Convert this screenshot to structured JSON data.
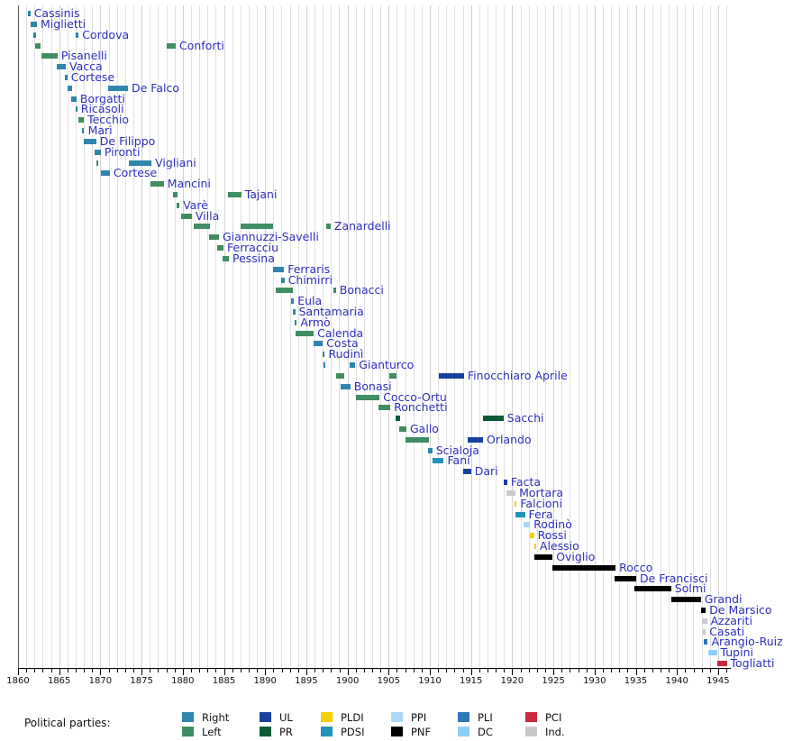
{
  "chart_data": {
    "type": "timeline",
    "description": "Gantt-style timeline of Italian ministers of justice 1861-1946, colored by political party",
    "legend_title": "Political parties:",
    "axis": {
      "start_year": 1860,
      "end_year": 1946,
      "minor_tick_interval": 1,
      "major_tick_interval": 5,
      "tick_label_years": [
        1860,
        1865,
        1870,
        1875,
        1880,
        1885,
        1890,
        1895,
        1900,
        1905,
        1910,
        1915,
        1920,
        1925,
        1930,
        1935,
        1940,
        1945
      ]
    },
    "parties": {
      "Right": "#2e86ad",
      "Left": "#3f8e63",
      "UL": "#17419f",
      "PR": "#0a5b38",
      "PLDI": "#f6ce03",
      "PDSI": "#2392bb",
      "PPI": "#a9d8f6",
      "PNF": "#000000",
      "PLI": "#2f76bb",
      "DC": "#8ecef5",
      "PCI": "#c92a3d",
      "Ind.": "#c9c9c9"
    },
    "legend_order": [
      "Right",
      "Left",
      "UL",
      "PR",
      "PLDI",
      "PDSI",
      "PPI",
      "PNF",
      "PLI",
      "DC",
      "PCI",
      "Ind."
    ],
    "ministers": [
      {
        "name": "Cassinis",
        "terms": [
          [
            1861.2,
            1861.5,
            "Right"
          ]
        ]
      },
      {
        "name": "Miglietti",
        "terms": [
          [
            1861.5,
            1862.3,
            "Right"
          ]
        ]
      },
      {
        "name": "Cordova",
        "terms": [
          [
            1861.9,
            1862.15,
            "Right"
          ],
          [
            1867.0,
            1867.35,
            "Right"
          ]
        ]
      },
      {
        "name": "Conforti",
        "terms": [
          [
            1862.05,
            1862.75,
            "Left"
          ],
          [
            1878.05,
            1879.15,
            "Left"
          ]
        ]
      },
      {
        "name": "Pisanelli",
        "terms": [
          [
            1862.85,
            1864.8,
            "Left"
          ]
        ]
      },
      {
        "name": "Vacca",
        "terms": [
          [
            1864.7,
            1865.8,
            "Right"
          ]
        ]
      },
      {
        "name": "Cortese",
        "terms": [
          [
            1865.65,
            1866.0,
            "Right"
          ]
        ]
      },
      {
        "name": "De Falco",
        "terms": [
          [
            1866.0,
            1866.55,
            "Right"
          ],
          [
            1870.95,
            1873.35,
            "Right"
          ]
        ]
      },
      {
        "name": "Borgatti",
        "terms": [
          [
            1866.4,
            1867.1,
            "Right"
          ]
        ]
      },
      {
        "name": "Ricasoli",
        "terms": [
          [
            1867.0,
            1867.2,
            "Right"
          ]
        ]
      },
      {
        "name": "Tecchio",
        "terms": [
          [
            1867.35,
            1868.0,
            "Left"
          ]
        ]
      },
      {
        "name": "Mari",
        "terms": [
          [
            1867.75,
            1868.05,
            "Right"
          ]
        ]
      },
      {
        "name": "De Filippo",
        "terms": [
          [
            1868.0,
            1869.5,
            "Right"
          ]
        ]
      },
      {
        "name": "Pironti",
        "terms": [
          [
            1869.3,
            1870.05,
            "Right"
          ]
        ]
      },
      {
        "name": "Vigliani",
        "terms": [
          [
            1869.5,
            1869.75,
            "Left"
          ],
          [
            1873.45,
            1876.2,
            "Right"
          ]
        ]
      },
      {
        "name": "Cortese",
        "terms": [
          [
            1870.05,
            1871.15,
            "Right"
          ]
        ]
      },
      {
        "name": "Mancini",
        "terms": [
          [
            1876.1,
            1877.7,
            "Left"
          ]
        ]
      },
      {
        "name": "Tajani",
        "terms": [
          [
            1878.8,
            1879.35,
            "Left"
          ],
          [
            1885.5,
            1887.1,
            "Left"
          ]
        ]
      },
      {
        "name": "Varè",
        "terms": [
          [
            1879.25,
            1879.6,
            "Left"
          ]
        ]
      },
      {
        "name": "Villa",
        "terms": [
          [
            1879.8,
            1881.1,
            "Left"
          ]
        ]
      },
      {
        "name": "Zanardelli",
        "terms": [
          [
            1881.3,
            1883.3,
            "Left"
          ],
          [
            1887.0,
            1891.0,
            "Left"
          ],
          [
            1897.45,
            1897.95,
            "Left"
          ]
        ]
      },
      {
        "name": "Giannuzzi-Savelli",
        "terms": [
          [
            1883.2,
            1884.4,
            "Left"
          ]
        ]
      },
      {
        "name": "Ferracciu",
        "terms": [
          [
            1884.2,
            1884.95,
            "Left"
          ]
        ]
      },
      {
        "name": "Pessina",
        "terms": [
          [
            1884.85,
            1885.6,
            "Left"
          ]
        ]
      },
      {
        "name": "Ferraris",
        "terms": [
          [
            1891.0,
            1892.3,
            "Right"
          ]
        ]
      },
      {
        "name": "Chimirri",
        "terms": [
          [
            1891.95,
            1892.35,
            "Right"
          ]
        ]
      },
      {
        "name": "Bonacci",
        "terms": [
          [
            1891.3,
            1893.4,
            "Left"
          ],
          [
            1898.3,
            1898.6,
            "Left"
          ]
        ]
      },
      {
        "name": "Eula",
        "terms": [
          [
            1893.15,
            1893.5,
            "Right"
          ]
        ]
      },
      {
        "name": "Santamaria",
        "terms": [
          [
            1893.4,
            1893.65,
            "Right"
          ]
        ]
      },
      {
        "name": "Armò",
        "terms": [
          [
            1893.6,
            1893.85,
            "Right"
          ]
        ]
      },
      {
        "name": "Calenda",
        "terms": [
          [
            1893.7,
            1895.9,
            "Left"
          ]
        ]
      },
      {
        "name": "Costa",
        "terms": [
          [
            1895.9,
            1897.0,
            "Right"
          ]
        ]
      },
      {
        "name": "Rudinì",
        "terms": [
          [
            1897.0,
            1897.25,
            "Right"
          ]
        ]
      },
      {
        "name": "Gianturco",
        "terms": [
          [
            1897.05,
            1897.35,
            "Right"
          ],
          [
            1900.3,
            1900.95,
            "Right"
          ]
        ]
      },
      {
        "name": "Finocchiaro Aprile",
        "terms": [
          [
            1898.65,
            1899.6,
            "Left"
          ],
          [
            1905.1,
            1906.0,
            "Left"
          ],
          [
            1911.1,
            1914.15,
            "UL"
          ]
        ]
      },
      {
        "name": "Bonasi",
        "terms": [
          [
            1899.2,
            1900.35,
            "Right"
          ]
        ]
      },
      {
        "name": "Cocco-Ortu",
        "terms": [
          [
            1901.0,
            1903.9,
            "Left"
          ]
        ]
      },
      {
        "name": "Ronchetti",
        "terms": [
          [
            1903.8,
            1905.2,
            "Left"
          ]
        ]
      },
      {
        "name": "Sacchi",
        "terms": [
          [
            1905.85,
            1906.4,
            "PR"
          ],
          [
            1916.45,
            1918.95,
            "PR"
          ]
        ]
      },
      {
        "name": "Gallo",
        "terms": [
          [
            1906.3,
            1907.15,
            "Left"
          ]
        ]
      },
      {
        "name": "Orlando",
        "terms": [
          [
            1907.05,
            1909.9,
            "Left"
          ],
          [
            1914.6,
            1916.45,
            "UL"
          ]
        ]
      },
      {
        "name": "Scialoja",
        "terms": [
          [
            1909.8,
            1910.3,
            "Right"
          ]
        ]
      },
      {
        "name": "Fani",
        "terms": [
          [
            1910.3,
            1911.7,
            "PDSI"
          ]
        ]
      },
      {
        "name": "Dari",
        "terms": [
          [
            1914.05,
            1915.0,
            "UL"
          ]
        ]
      },
      {
        "name": "Facta",
        "terms": [
          [
            1919.0,
            1919.4,
            "UL"
          ]
        ]
      },
      {
        "name": "Mortara",
        "terms": [
          [
            1919.3,
            1920.4,
            "Ind."
          ]
        ]
      },
      {
        "name": "Falcioni",
        "terms": [
          [
            1920.25,
            1920.55,
            "PLDI"
          ]
        ]
      },
      {
        "name": "Fera",
        "terms": [
          [
            1920.4,
            1921.55,
            "PDSI"
          ]
        ]
      },
      {
        "name": "Rodinò",
        "terms": [
          [
            1921.4,
            1922.15,
            "PPI"
          ]
        ]
      },
      {
        "name": "Rossi",
        "terms": [
          [
            1922.1,
            1922.65,
            "PLDI"
          ]
        ]
      },
      {
        "name": "Alessio",
        "terms": [
          [
            1922.65,
            1922.9,
            "PLDI"
          ]
        ]
      },
      {
        "name": "Oviglio",
        "terms": [
          [
            1922.7,
            1924.9,
            "PNF"
          ]
        ]
      },
      {
        "name": "Rocco",
        "terms": [
          [
            1924.9,
            1932.55,
            "PNF"
          ]
        ]
      },
      {
        "name": "De Francisci",
        "terms": [
          [
            1932.4,
            1935.05,
            "PNF"
          ]
        ]
      },
      {
        "name": "Solmi",
        "terms": [
          [
            1934.85,
            1939.3,
            "PNF"
          ]
        ]
      },
      {
        "name": "Grandi",
        "terms": [
          [
            1939.3,
            1942.9,
            "PNF"
          ]
        ]
      },
      {
        "name": "De Marsico",
        "terms": [
          [
            1942.9,
            1943.5,
            "PNF"
          ]
        ]
      },
      {
        "name": "Azzariti",
        "terms": [
          [
            1943.05,
            1943.65,
            "Ind."
          ]
        ]
      },
      {
        "name": "Casati",
        "terms": [
          [
            1943.2,
            1943.5,
            "Ind."
          ]
        ]
      },
      {
        "name": "Arangio-Ruiz",
        "terms": [
          [
            1943.3,
            1943.75,
            "PLI"
          ]
        ]
      },
      {
        "name": "Tupini",
        "terms": [
          [
            1943.75,
            1944.85,
            "DC"
          ]
        ]
      },
      {
        "name": "Togliatti",
        "terms": [
          [
            1944.85,
            1946.05,
            "PCI"
          ]
        ]
      }
    ]
  }
}
